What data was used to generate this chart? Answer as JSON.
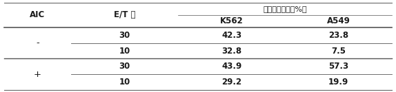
{
  "header": {
    "col1": "AIC",
    "col2": "E/T 比",
    "col3_span": "细胞毒性活性（%）",
    "col3": "K562",
    "col4": "A549"
  },
  "rows": [
    [
      "-",
      "30",
      "42.3",
      "23.8"
    ],
    [
      "",
      "10",
      "32.8",
      "7.5"
    ],
    [
      "+",
      "30",
      "43.9",
      "57.3"
    ],
    [
      "",
      "10",
      "29.2",
      "19.9"
    ]
  ],
  "bg_color": "#ffffff",
  "text_color": "#1a1a1a",
  "line_color": "#555555",
  "font_size": 8.5,
  "figsize": [
    5.74,
    1.34
  ],
  "dpi": 100
}
